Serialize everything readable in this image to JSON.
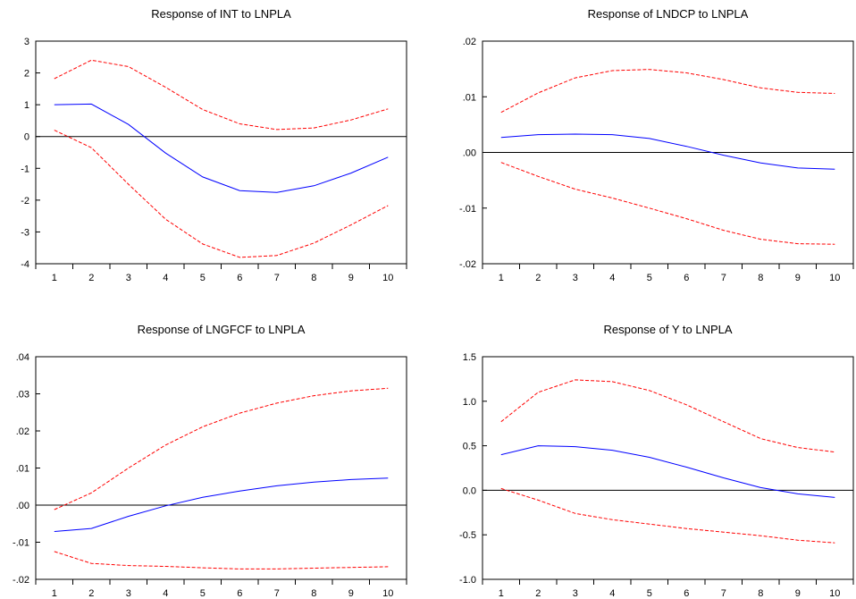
{
  "chart_data": [
    {
      "type": "line",
      "title": "Response of INT to LNPLA",
      "x": [
        1,
        2,
        3,
        4,
        5,
        6,
        7,
        8,
        9,
        10
      ],
      "ylim": [
        -4,
        3
      ],
      "yticks": [
        -4,
        -3,
        -2,
        -1,
        0,
        1,
        2,
        3
      ],
      "ytick_labels": [
        "-4",
        "-3",
        "-2",
        "-1",
        "0",
        "1",
        "2",
        "3"
      ],
      "series": [
        {
          "color": "#0000ff",
          "style": "solid",
          "values": [
            1.0,
            1.02,
            0.38,
            -0.52,
            -1.27,
            -1.7,
            -1.76,
            -1.55,
            -1.15,
            -0.65
          ]
        },
        {
          "color": "#ff0000",
          "style": "dashed",
          "values": [
            1.82,
            2.4,
            2.2,
            1.55,
            0.85,
            0.4,
            0.22,
            0.27,
            0.52,
            0.87
          ]
        },
        {
          "color": "#ff0000",
          "style": "dashed",
          "values": [
            0.2,
            -0.35,
            -1.5,
            -2.6,
            -3.38,
            -3.8,
            -3.74,
            -3.35,
            -2.78,
            -2.17
          ]
        }
      ]
    },
    {
      "type": "line",
      "title": "Response of LNDCP to LNPLA",
      "x": [
        1,
        2,
        3,
        4,
        5,
        6,
        7,
        8,
        9,
        10
      ],
      "ylim": [
        -0.02,
        0.02
      ],
      "yticks": [
        -0.02,
        -0.01,
        0,
        0.01,
        0.02
      ],
      "ytick_labels": [
        "-.02",
        "-.01",
        ".00",
        ".01",
        ".02"
      ],
      "series": [
        {
          "color": "#0000ff",
          "style": "solid",
          "values": [
            0.0027,
            0.0032,
            0.0033,
            0.0032,
            0.0025,
            0.0011,
            -0.0005,
            -0.0019,
            -0.0028,
            -0.003
          ]
        },
        {
          "color": "#ff0000",
          "style": "dashed",
          "values": [
            0.0072,
            0.0107,
            0.0134,
            0.0147,
            0.0149,
            0.0143,
            0.0131,
            0.0116,
            0.0108,
            0.0106
          ]
        },
        {
          "color": "#ff0000",
          "style": "dashed",
          "values": [
            -0.0018,
            -0.0043,
            -0.0066,
            -0.0082,
            -0.01,
            -0.0119,
            -0.014,
            -0.0156,
            -0.0164,
            -0.0165
          ]
        }
      ]
    },
    {
      "type": "line",
      "title": "Response of LNGFCF to LNPLA",
      "x": [
        1,
        2,
        3,
        4,
        5,
        6,
        7,
        8,
        9,
        10
      ],
      "ylim": [
        -0.02,
        0.04
      ],
      "yticks": [
        -0.02,
        -0.01,
        0,
        0.01,
        0.02,
        0.03,
        0.04
      ],
      "ytick_labels": [
        "-.02",
        "-.01",
        ".00",
        ".01",
        ".02",
        ".03",
        ".04"
      ],
      "series": [
        {
          "color": "#0000ff",
          "style": "solid",
          "values": [
            -0.0071,
            -0.0063,
            -0.003,
            -0.0002,
            0.0021,
            0.0038,
            0.0052,
            0.0062,
            0.0069,
            0.0073
          ]
        },
        {
          "color": "#ff0000",
          "style": "dashed",
          "values": [
            -0.0012,
            0.0033,
            0.01,
            0.0162,
            0.0211,
            0.0248,
            0.0275,
            0.0295,
            0.0308,
            0.0315
          ]
        },
        {
          "color": "#ff0000",
          "style": "dashed",
          "values": [
            -0.0125,
            -0.0157,
            -0.0163,
            -0.0165,
            -0.0169,
            -0.0172,
            -0.0172,
            -0.017,
            -0.0168,
            -0.0166
          ]
        }
      ]
    },
    {
      "type": "line",
      "title": "Response of Y to LNPLA",
      "x": [
        1,
        2,
        3,
        4,
        5,
        6,
        7,
        8,
        9,
        10
      ],
      "ylim": [
        -1.0,
        1.5
      ],
      "yticks": [
        -1.0,
        -0.5,
        0,
        0.5,
        1.0,
        1.5
      ],
      "ytick_labels": [
        "-1.0",
        "-0.5",
        "0.0",
        "0.5",
        "1.0",
        "1.5"
      ],
      "series": [
        {
          "color": "#0000ff",
          "style": "solid",
          "values": [
            0.4,
            0.5,
            0.49,
            0.45,
            0.37,
            0.26,
            0.14,
            0.03,
            -0.04,
            -0.08
          ]
        },
        {
          "color": "#ff0000",
          "style": "dashed",
          "values": [
            0.77,
            1.1,
            1.24,
            1.22,
            1.12,
            0.96,
            0.77,
            0.58,
            0.48,
            0.43
          ]
        },
        {
          "color": "#ff0000",
          "style": "dashed",
          "values": [
            0.02,
            -0.11,
            -0.26,
            -0.33,
            -0.38,
            -0.43,
            -0.47,
            -0.51,
            -0.56,
            -0.59
          ]
        }
      ]
    }
  ],
  "x_tick_labels": [
    "1",
    "2",
    "3",
    "4",
    "5",
    "6",
    "7",
    "8",
    "9",
    "10"
  ]
}
